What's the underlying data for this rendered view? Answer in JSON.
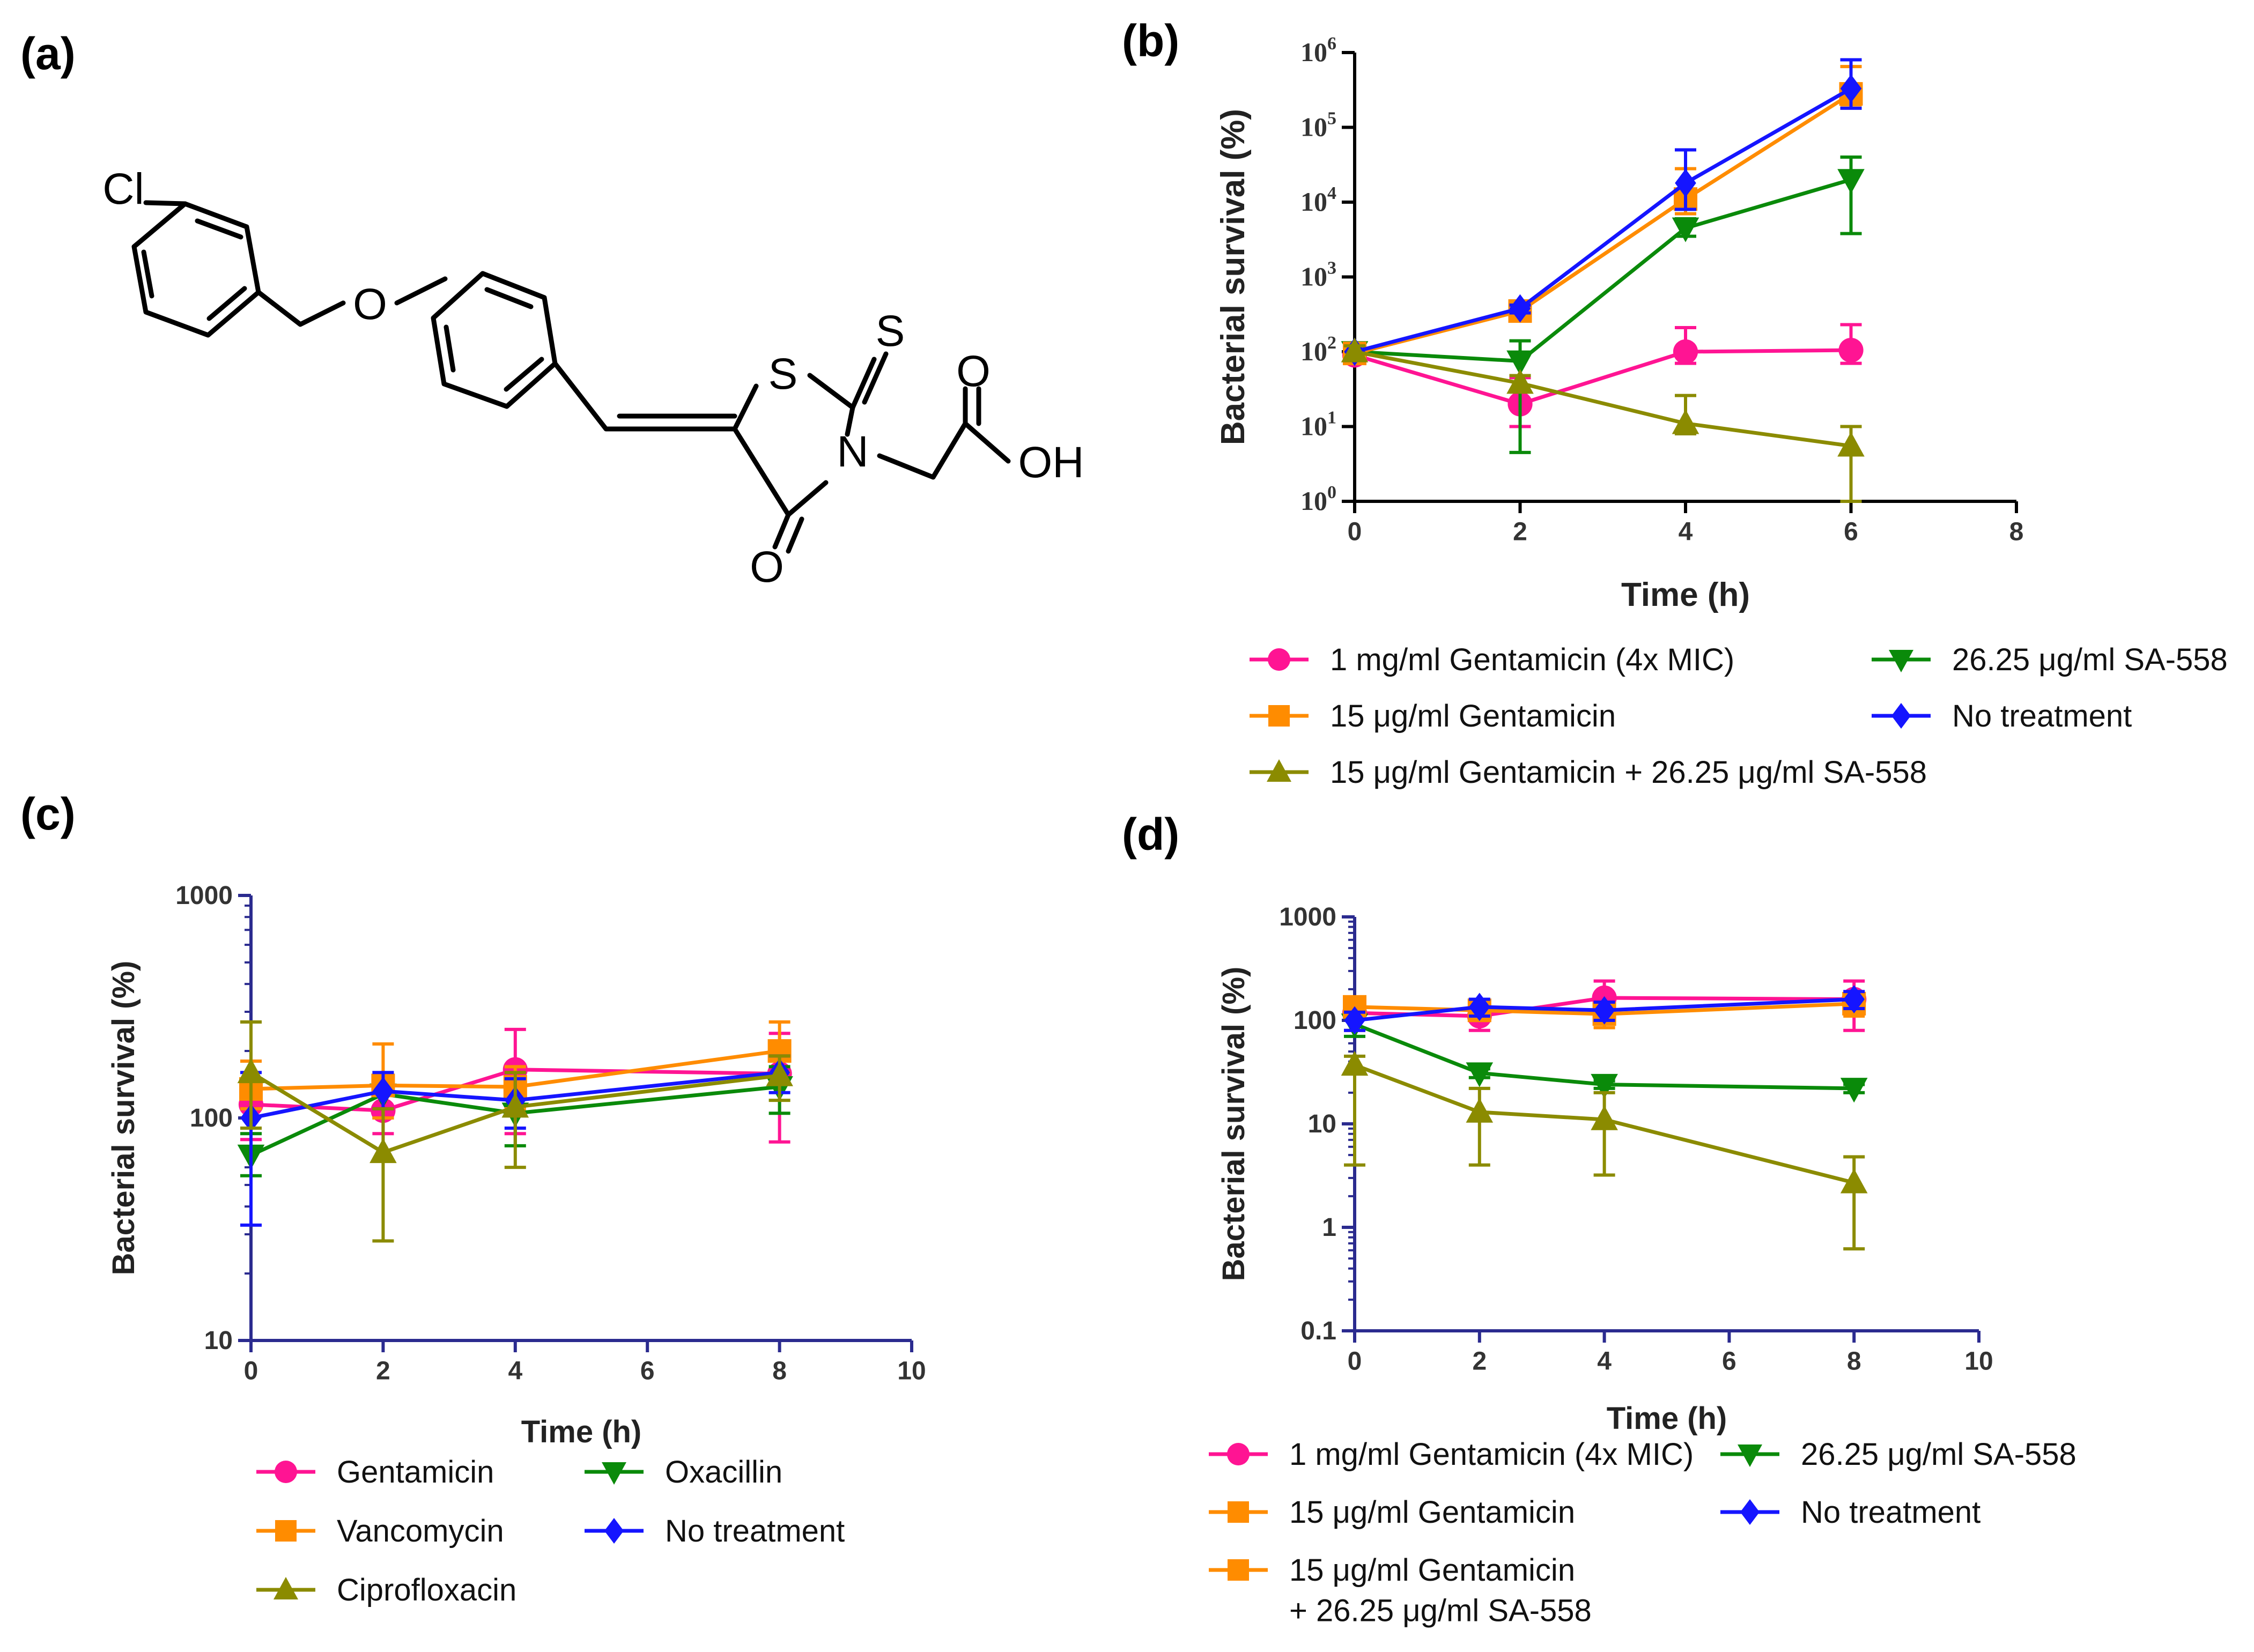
{
  "panel_labels": {
    "a": "(a)",
    "b": "(b)",
    "c": "(c)",
    "d": "(d)"
  },
  "molecule": {
    "atoms": [
      "Cl",
      "O",
      "S",
      "S",
      "N",
      "O",
      "O",
      "OH"
    ]
  },
  "colors": {
    "pink": "#ff1493",
    "orange": "#ff8c00",
    "olive": "#8b8b00",
    "green": "#0a8a0a",
    "blue": "#1515ff",
    "axis_navy": "#2b2b8f"
  },
  "chart_data": [
    {
      "id": "b",
      "type": "line",
      "yscale": "log",
      "xlabel": "Time (h)",
      "ylabel": "Bacterial survival (%)",
      "xlim": [
        0,
        8
      ],
      "ylim": [
        1,
        1000000
      ],
      "xticks": [
        "0",
        "2",
        "4",
        "6",
        "8"
      ],
      "yticks": [
        {
          "base": "10",
          "exp": "0"
        },
        {
          "base": "10",
          "exp": "1"
        },
        {
          "base": "10",
          "exp": "2"
        },
        {
          "base": "10",
          "exp": "3"
        },
        {
          "base": "10",
          "exp": "4"
        },
        {
          "base": "10",
          "exp": "5"
        },
        {
          "base": "10",
          "exp": "6"
        }
      ],
      "series": [
        {
          "name": "1 mg/ml Gentamicin (4x MIC)",
          "color": "#ff1493",
          "marker": "circle",
          "x": [
            0,
            2,
            4,
            6
          ],
          "y": [
            90,
            20,
            100,
            105
          ],
          "err_low": [
            70,
            10,
            70,
            70
          ],
          "err_high": [
            110,
            45,
            210,
            230
          ]
        },
        {
          "name": "26.25 μg/ml SA-558",
          "color": "#0a8a0a",
          "marker": "triangle-down",
          "x": [
            0,
            2,
            4,
            6
          ],
          "y": [
            100,
            75,
            4500,
            20000
          ],
          "err_low": [
            80,
            4.5,
            3500,
            3800
          ],
          "err_high": [
            120,
            140,
            6000,
            40000
          ]
        },
        {
          "name": "15 μg/ml Gentamicin",
          "color": "#ff8c00",
          "marker": "square",
          "x": [
            0,
            2,
            4,
            6
          ],
          "y": [
            95,
            350,
            11000,
            280000
          ],
          "err_low": [
            80,
            300,
            7000,
            200000
          ],
          "err_high": [
            110,
            400,
            28000,
            650000
          ]
        },
        {
          "name": "No treatment",
          "color": "#1515ff",
          "marker": "diamond",
          "x": [
            0,
            2,
            4,
            6
          ],
          "y": [
            100,
            380,
            18000,
            330000
          ],
          "err_low": [
            80,
            330,
            8000,
            180000
          ],
          "err_high": [
            120,
            420,
            50000,
            800000
          ]
        },
        {
          "name": "15 μg/ml Gentamicin + 26.25 μg/ml SA-558",
          "color": "#8b8b00",
          "marker": "triangle-up",
          "x": [
            0,
            2,
            4,
            6
          ],
          "y": [
            100,
            38,
            11,
            5.5
          ],
          "err_low": [
            80,
            30,
            8,
            1
          ],
          "err_high": [
            120,
            48,
            26,
            10
          ]
        }
      ],
      "legend_rows": [
        [
          "1 mg/ml Gentamicin (4x MIC)",
          "26.25 μg/ml SA-558"
        ],
        [
          "15 μg/ml Gentamicin",
          "No treatment"
        ],
        [
          "15 μg/ml Gentamicin + 26.25 μg/ml SA-558"
        ]
      ]
    },
    {
      "id": "c",
      "type": "line",
      "yscale": "log",
      "xlabel": "Time (h)",
      "ylabel": "Bacterial survival (%)",
      "xlim": [
        0,
        10
      ],
      "ylim": [
        10,
        1000
      ],
      "xticks": [
        "0",
        "2",
        "4",
        "6",
        "8",
        "10"
      ],
      "yticks": [
        "10",
        "100",
        "1000"
      ],
      "series": [
        {
          "name": "Gentamicin",
          "color": "#ff1493",
          "marker": "circle",
          "x": [
            0,
            2,
            4,
            8
          ],
          "y": [
            115,
            108,
            165,
            158
          ],
          "err_low": [
            80,
            85,
            85,
            78
          ],
          "err_high": [
            145,
            130,
            250,
            240
          ]
        },
        {
          "name": "Oxacillin",
          "color": "#0a8a0a",
          "marker": "triangle-down",
          "x": [
            0,
            2,
            4,
            8
          ],
          "y": [
            68,
            128,
            105,
            138
          ],
          "err_low": [
            55,
            100,
            75,
            105
          ],
          "err_high": [
            85,
            150,
            140,
            170
          ]
        },
        {
          "name": "Vancomycin",
          "color": "#ff8c00",
          "marker": "square",
          "x": [
            0,
            2,
            4,
            8
          ],
          "y": [
            135,
            140,
            138,
            200
          ],
          "err_low": [
            110,
            100,
            110,
            160
          ],
          "err_high": [
            180,
            215,
            170,
            270
          ]
        },
        {
          "name": "No treatment",
          "color": "#1515ff",
          "marker": "diamond",
          "x": [
            0,
            2,
            4,
            8
          ],
          "y": [
            100,
            132,
            120,
            160
          ],
          "err_low": [
            33,
            110,
            90,
            130
          ],
          "err_high": [
            160,
            160,
            150,
            190
          ]
        },
        {
          "name": "Ciprofloxacin",
          "color": "#8b8b00",
          "marker": "triangle-up",
          "x": [
            0,
            2,
            4,
            8
          ],
          "y": [
            160,
            70,
            112,
            155
          ],
          "err_low": [
            90,
            28,
            60,
            120
          ],
          "err_high": [
            270,
            110,
            160,
            190
          ]
        }
      ],
      "legend_rows": [
        [
          "Gentamicin",
          "Oxacillin"
        ],
        [
          "Vancomycin",
          "No treatment"
        ],
        [
          "Ciprofloxacin"
        ]
      ]
    },
    {
      "id": "d",
      "type": "line",
      "yscale": "log",
      "xlabel": "Time (h)",
      "ylabel": "Bacterial survival (%)",
      "xlim": [
        0,
        10
      ],
      "ylim": [
        0.1,
        1000
      ],
      "xticks": [
        "0",
        "2",
        "4",
        "6",
        "8",
        "10"
      ],
      "yticks": [
        "0.1",
        "1",
        "10",
        "100",
        "1000"
      ],
      "series": [
        {
          "name": "1 mg/ml Gentamicin (4x MIC)",
          "color": "#ff1493",
          "marker": "circle",
          "x": [
            0,
            2,
            4,
            8
          ],
          "y": [
            118,
            110,
            165,
            160
          ],
          "err_low": [
            80,
            80,
            110,
            80
          ],
          "err_high": [
            160,
            140,
            240,
            240
          ]
        },
        {
          "name": "26.25 μg/ml SA-558",
          "color": "#0a8a0a",
          "marker": "triangle-down",
          "x": [
            0,
            2,
            4,
            8
          ],
          "y": [
            92,
            31,
            24,
            22
          ],
          "err_low": [
            70,
            28,
            22,
            20
          ],
          "err_high": [
            110,
            34,
            26,
            24
          ]
        },
        {
          "name": "15 μg/ml Gentamicin",
          "color": "#ff8c00",
          "marker": "square",
          "x": [
            0,
            2,
            4,
            8
          ],
          "y": [
            135,
            125,
            115,
            145
          ],
          "err_low": [
            110,
            100,
            85,
            110
          ],
          "err_high": [
            160,
            150,
            140,
            175
          ]
        },
        {
          "name": "No treatment",
          "color": "#1515ff",
          "marker": "diamond",
          "x": [
            0,
            2,
            4,
            8
          ],
          "y": [
            100,
            135,
            125,
            160
          ],
          "err_low": [
            80,
            110,
            100,
            130
          ],
          "err_high": [
            120,
            160,
            150,
            190
          ]
        },
        {
          "name": "15 μg/ml Gentamicin + 26.25 μg/ml SA-558",
          "color": "#8b8b00",
          "marker": "triangle-up",
          "x": [
            0,
            2,
            4,
            8
          ],
          "y": [
            37,
            13,
            11,
            2.7
          ],
          "err_low": [
            4,
            4,
            3.2,
            0.62
          ],
          "err_high": [
            45,
            22,
            20,
            4.8
          ]
        }
      ],
      "legend_rows": [
        [
          "1 mg/ml Gentamicin (4x MIC)",
          "26.25 μg/ml SA-558"
        ],
        [
          "15 μg/ml Gentamicin",
          "No treatment"
        ],
        [
          "15 μg/ml Gentamicin",
          "+ 26.25 μg/ml SA-558"
        ]
      ]
    }
  ]
}
